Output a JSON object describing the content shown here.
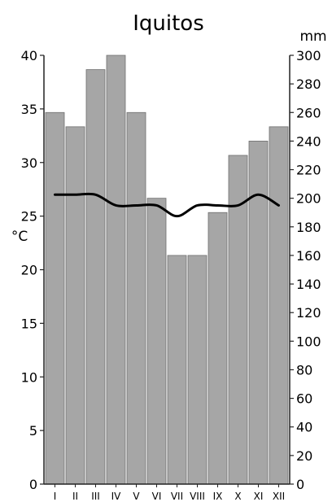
{
  "chart_data": {
    "type": "bar",
    "title": "Iquitos",
    "categories": [
      "I",
      "II",
      "III",
      "IV",
      "V",
      "VI",
      "VII",
      "VIII",
      "IX",
      "X",
      "XI",
      "XII"
    ],
    "series": [
      {
        "kind": "bar",
        "axis": "right",
        "values": [
          260,
          250,
          290,
          300,
          260,
          200,
          160,
          160,
          190,
          230,
          240,
          250
        ]
      },
      {
        "kind": "line",
        "axis": "left",
        "values": [
          27,
          27,
          27,
          26,
          26,
          26,
          25,
          26,
          26,
          26,
          27,
          26
        ]
      }
    ],
    "left_axis": {
      "unit": "°C",
      "min": 0,
      "max": 40,
      "ticks": [
        0,
        5,
        10,
        15,
        20,
        25,
        30,
        35,
        40
      ]
    },
    "right_axis": {
      "unit": "mm",
      "min": 0,
      "max": 300,
      "ticks": [
        0,
        20,
        40,
        60,
        80,
        100,
        120,
        140,
        160,
        180,
        200,
        220,
        240,
        260,
        280,
        300
      ]
    },
    "bar_color": "#a6a6a6",
    "line_color": "#000000",
    "grid": false,
    "legend": "none"
  }
}
